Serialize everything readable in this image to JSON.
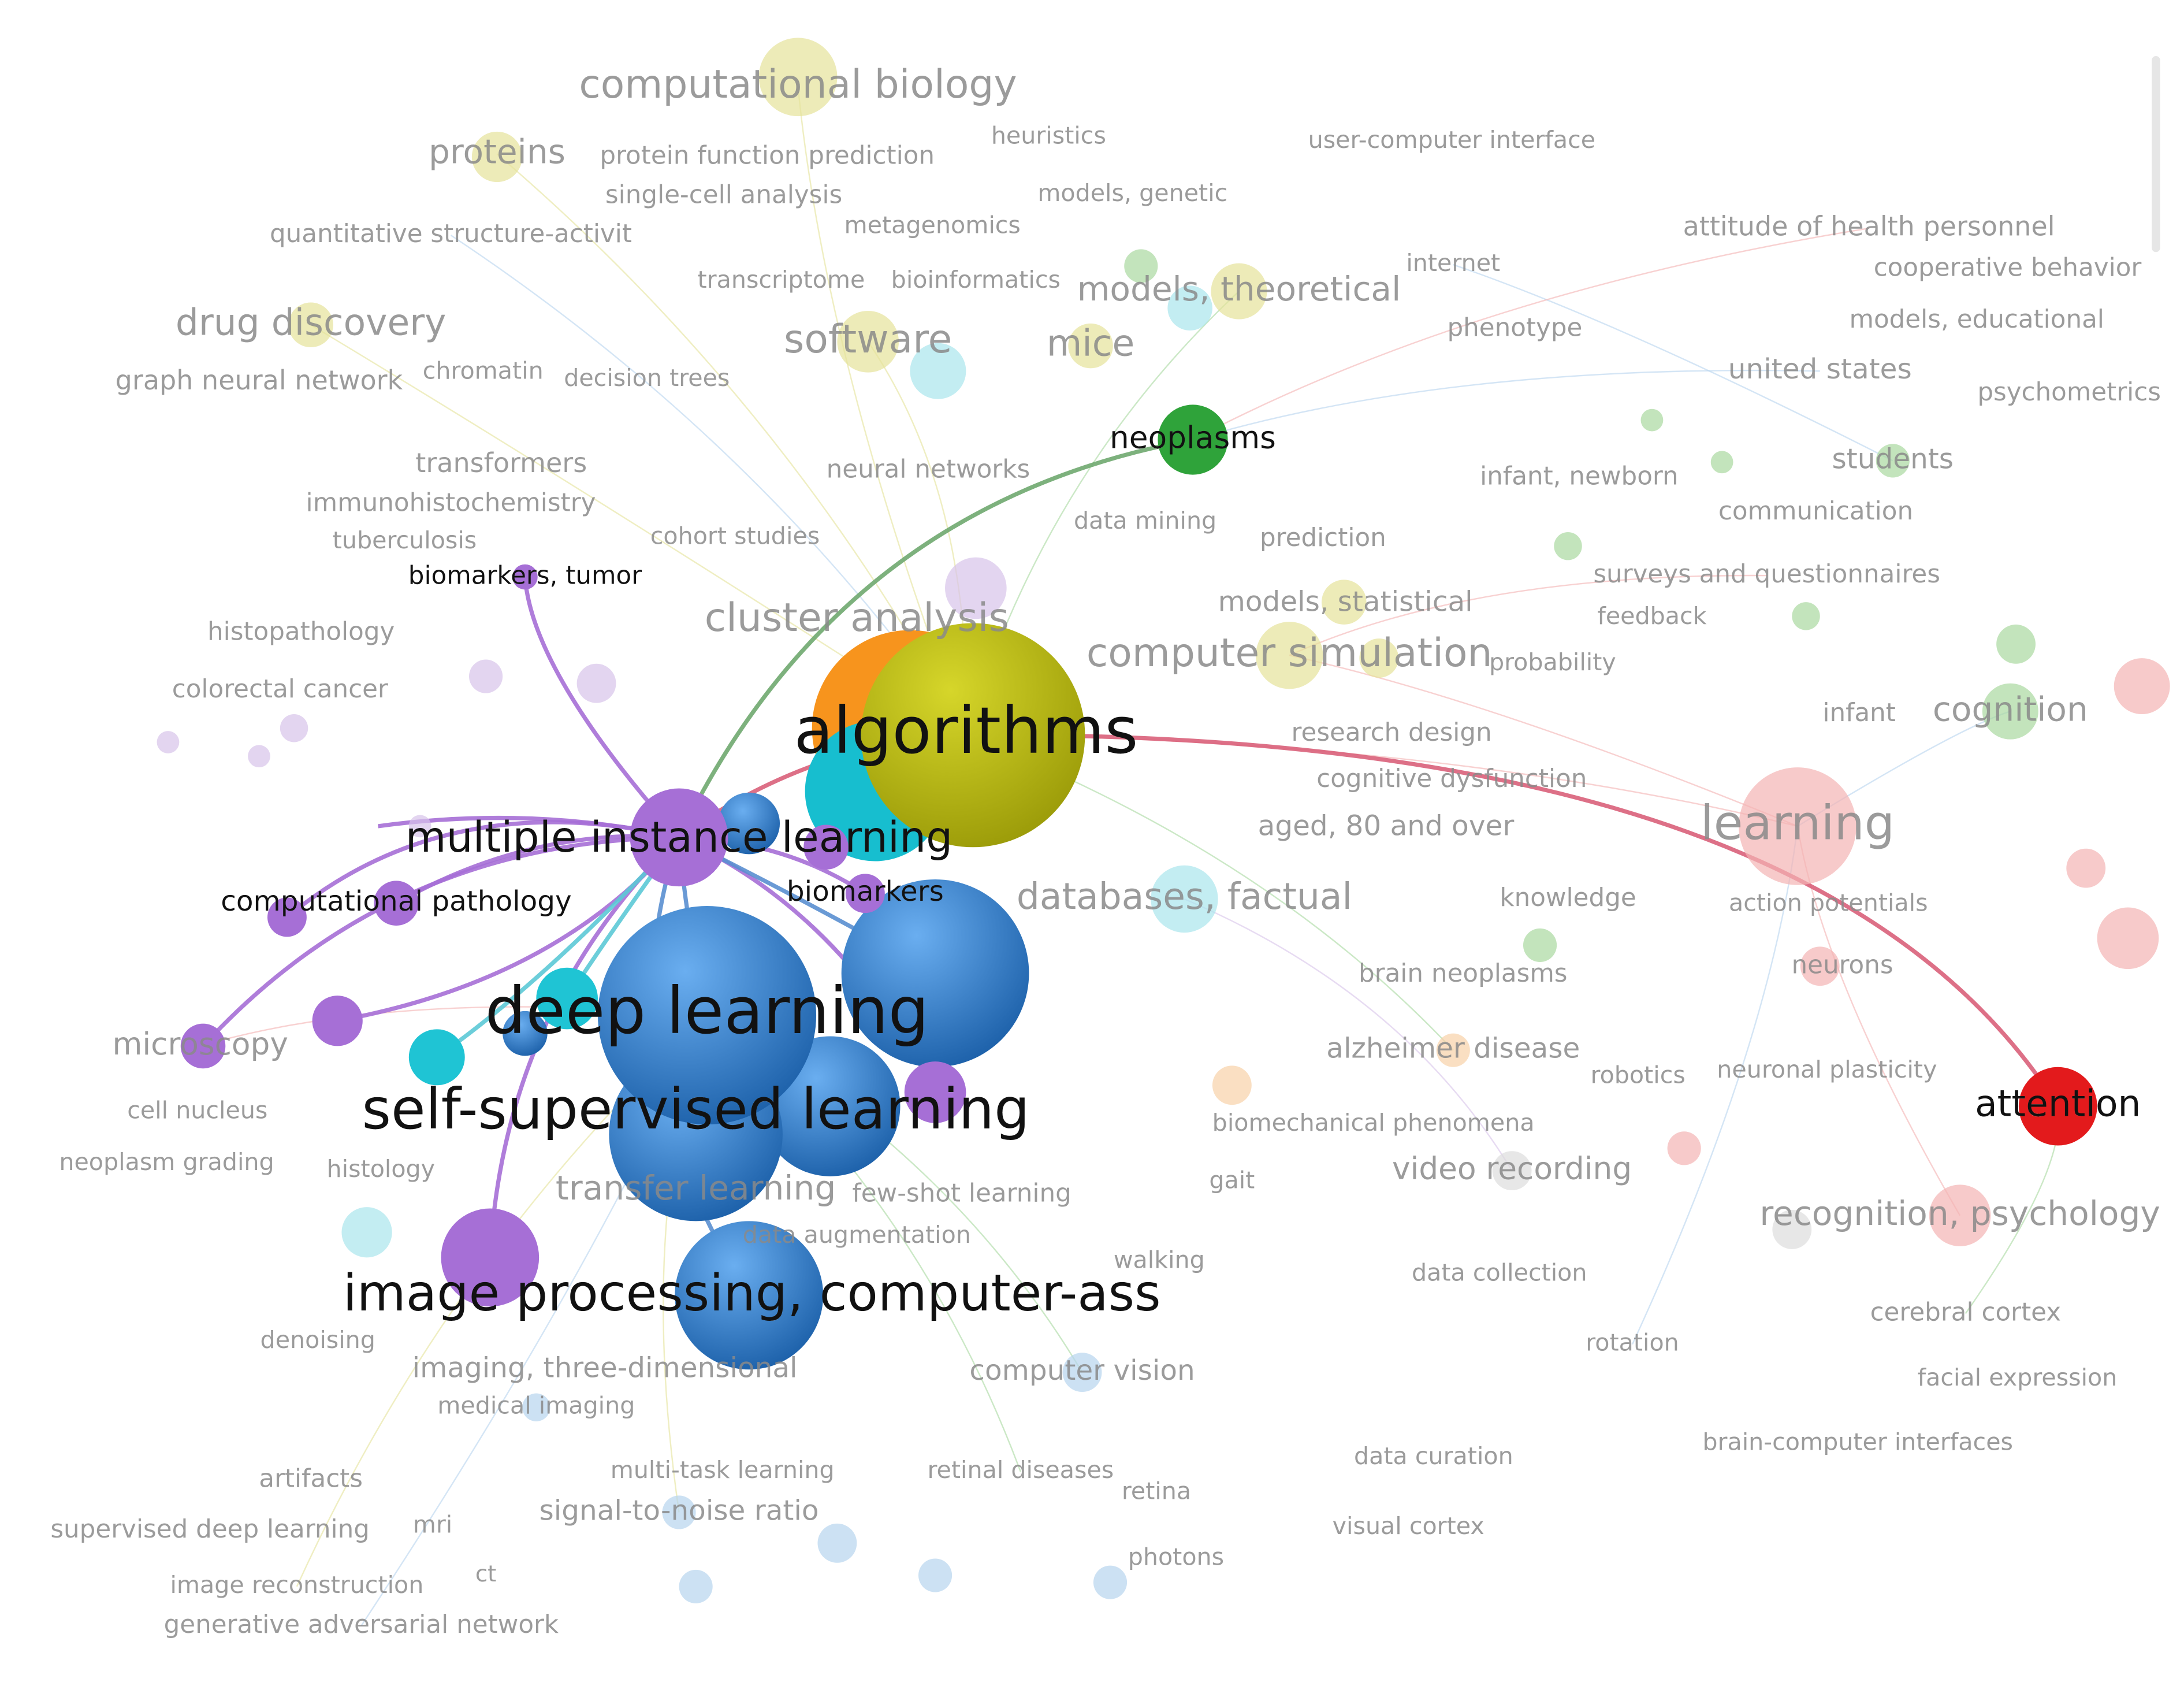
{
  "nodes": [
    {
      "label": "algorithms"
    },
    {
      "label": "deep learning"
    },
    {
      "label": "self-supervised learning"
    },
    {
      "label": "image processing, computer-ass"
    },
    {
      "label": "multiple instance learning"
    },
    {
      "label": "neoplasms"
    },
    {
      "label": "attention"
    },
    {
      "label": "biomarkers, tumor"
    },
    {
      "label": "computational pathology"
    },
    {
      "label": "biomarkers"
    },
    {
      "label": "computational biology"
    },
    {
      "label": "proteins"
    },
    {
      "label": "protein function prediction"
    },
    {
      "label": "heuristics"
    },
    {
      "label": "user-computer interface"
    },
    {
      "label": "single-cell analysis"
    },
    {
      "label": "models, genetic"
    },
    {
      "label": "quantitative structure-activit"
    },
    {
      "label": "metagenomics"
    },
    {
      "label": "drug discovery"
    },
    {
      "label": "transcriptome"
    },
    {
      "label": "bioinformatics"
    },
    {
      "label": "models, theoretical"
    },
    {
      "label": "software"
    },
    {
      "label": "mice"
    },
    {
      "label": "graph neural network"
    },
    {
      "label": "chromatin"
    },
    {
      "label": "decision trees"
    },
    {
      "label": "internet"
    },
    {
      "label": "attitude of health personnel"
    },
    {
      "label": "cooperative behavior"
    },
    {
      "label": "phenotype"
    },
    {
      "label": "models, educational"
    },
    {
      "label": "united states"
    },
    {
      "label": "psychometrics"
    },
    {
      "label": "transformers"
    },
    {
      "label": "neural networks"
    },
    {
      "label": "infant, newborn"
    },
    {
      "label": "students"
    },
    {
      "label": "immunohistochemistry"
    },
    {
      "label": "communication"
    },
    {
      "label": "cohort studies"
    },
    {
      "label": "data mining"
    },
    {
      "label": "prediction"
    },
    {
      "label": "tuberculosis"
    },
    {
      "label": "surveys and questionnaires"
    },
    {
      "label": "histopathology"
    },
    {
      "label": "cluster analysis"
    },
    {
      "label": "models, statistical"
    },
    {
      "label": "feedback"
    },
    {
      "label": "colorectal cancer"
    },
    {
      "label": "computer simulation"
    },
    {
      "label": "probability"
    },
    {
      "label": "infant"
    },
    {
      "label": "cognition"
    },
    {
      "label": "research design"
    },
    {
      "label": "cognitive dysfunction"
    },
    {
      "label": "learning"
    },
    {
      "label": "aged, 80 and over"
    },
    {
      "label": "databases, factual"
    },
    {
      "label": "knowledge"
    },
    {
      "label": "action potentials"
    },
    {
      "label": "neurons"
    },
    {
      "label": "brain neoplasms"
    },
    {
      "label": "microscopy"
    },
    {
      "label": "alzheimer disease"
    },
    {
      "label": "robotics"
    },
    {
      "label": "neuronal plasticity"
    },
    {
      "label": "cell nucleus"
    },
    {
      "label": "neoplasm grading"
    },
    {
      "label": "histology"
    },
    {
      "label": "biomechanical phenomena"
    },
    {
      "label": "video recording"
    },
    {
      "label": "transfer learning"
    },
    {
      "label": "few-shot learning"
    },
    {
      "label": "gait"
    },
    {
      "label": "recognition, psychology"
    },
    {
      "label": "data augmentation"
    },
    {
      "label": "walking"
    },
    {
      "label": "data collection"
    },
    {
      "label": "cerebral cortex"
    },
    {
      "label": "imaging, three-dimensional"
    },
    {
      "label": "computer vision"
    },
    {
      "label": "rotation"
    },
    {
      "label": "facial expression"
    },
    {
      "label": "medical imaging"
    },
    {
      "label": "artifacts"
    },
    {
      "label": "multi-task learning"
    },
    {
      "label": "retinal diseases"
    },
    {
      "label": "data curation"
    },
    {
      "label": "brain-computer interfaces"
    },
    {
      "label": "retina"
    },
    {
      "label": "signal-to-noise ratio"
    },
    {
      "label": "supervised deep learning"
    },
    {
      "label": "mri"
    },
    {
      "label": "visual cortex"
    },
    {
      "label": "image reconstruction"
    },
    {
      "label": "ct"
    },
    {
      "label": "photons"
    },
    {
      "label": "generative adversarial network"
    },
    {
      "label": "denoising"
    }
  ]
}
